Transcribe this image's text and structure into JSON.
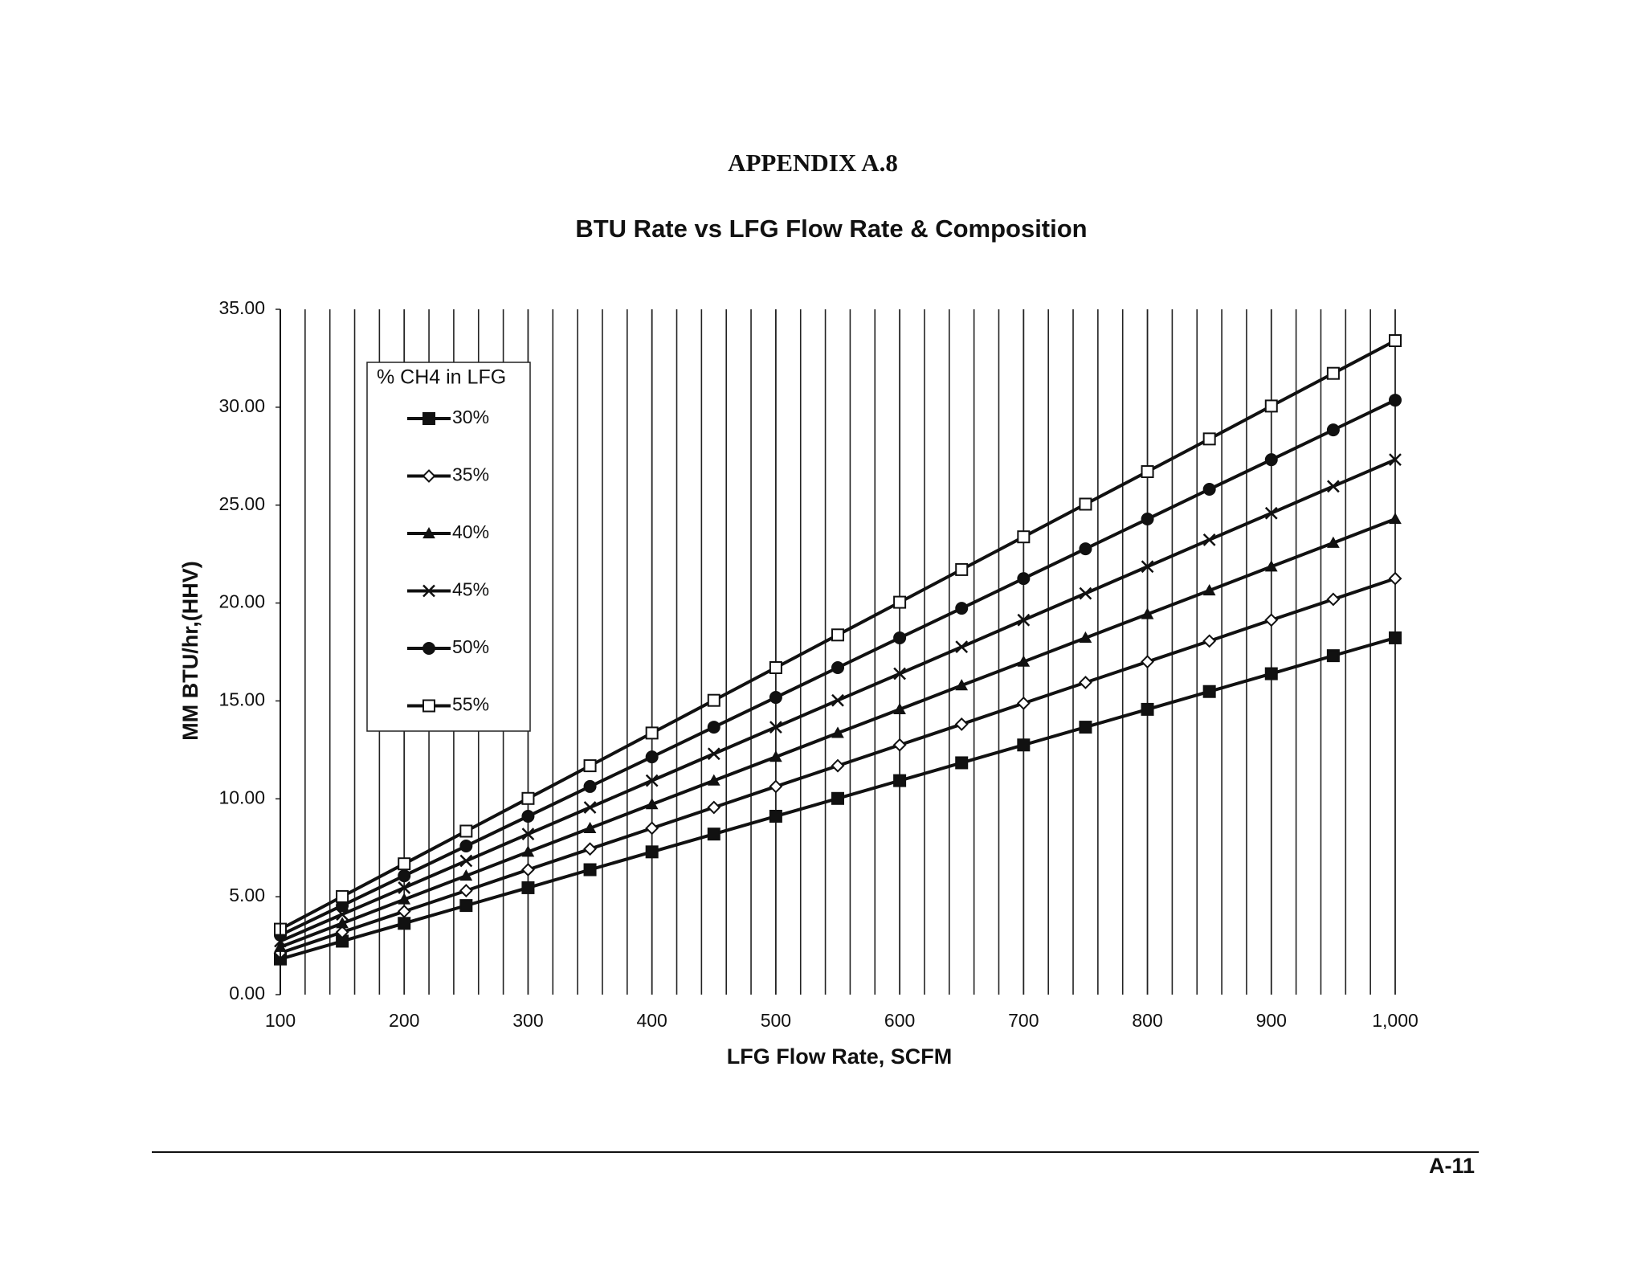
{
  "header": {
    "title": "APPENDIX A.8"
  },
  "footer": {
    "page": "A-11"
  },
  "chart_data": {
    "type": "line",
    "title": "BTU Rate vs LFG Flow Rate & Composition",
    "x_label": "LFG Flow Rate, SCFM",
    "y_label": "MM BTU/hr,(HHV)",
    "legend_title": "% CH4 in LFG",
    "legend": "upper left",
    "grid": true,
    "x": [
      100,
      150,
      200,
      250,
      300,
      350,
      400,
      450,
      500,
      550,
      600,
      650,
      700,
      750,
      800,
      850,
      900,
      950,
      1000
    ],
    "xlim": [
      100,
      1000
    ],
    "xticks": [
      100,
      200,
      300,
      400,
      500,
      600,
      700,
      800,
      900,
      {
        "value": 1000,
        "label": "1,000"
      }
    ],
    "ylim": [
      0,
      35
    ],
    "yticks": [
      {
        "value": 0,
        "label": "0.00"
      },
      {
        "value": 5,
        "label": "5.00"
      },
      {
        "value": 10,
        "label": "10.00"
      },
      {
        "value": 15,
        "label": "15.00"
      },
      {
        "value": 20,
        "label": "20.00"
      },
      {
        "value": 25,
        "label": "25.00"
      },
      {
        "value": 30,
        "label": "30.00"
      },
      {
        "value": 35,
        "label": "35.00"
      }
    ],
    "series": [
      {
        "name": "30%",
        "color": "#111111",
        "marker": "square-filled",
        "values": [
          1.82,
          2.73,
          3.64,
          4.55,
          5.46,
          6.38,
          7.29,
          8.2,
          9.11,
          10.02,
          10.93,
          11.84,
          12.75,
          13.66,
          14.57,
          15.48,
          16.39,
          17.31,
          18.22
        ]
      },
      {
        "name": "35%",
        "color": "#111111",
        "marker": "diamond-open",
        "values": [
          2.13,
          3.19,
          4.25,
          5.31,
          6.38,
          7.44,
          8.5,
          9.56,
          10.63,
          11.69,
          12.75,
          13.81,
          14.88,
          15.94,
          17.0,
          18.06,
          19.13,
          20.19,
          21.25
        ]
      },
      {
        "name": "40%",
        "color": "#111111",
        "marker": "triangle-filled",
        "values": [
          2.43,
          3.64,
          4.86,
          6.07,
          7.29,
          8.5,
          9.72,
          10.93,
          12.14,
          13.36,
          14.57,
          15.79,
          17.0,
          18.22,
          19.43,
          20.64,
          21.86,
          23.07,
          24.29
        ]
      },
      {
        "name": "45%",
        "color": "#111111",
        "marker": "x",
        "values": [
          2.73,
          4.1,
          5.46,
          6.83,
          8.2,
          9.56,
          10.93,
          12.3,
          13.66,
          15.03,
          16.39,
          17.76,
          19.13,
          20.49,
          21.86,
          23.23,
          24.59,
          25.96,
          27.32
        ]
      },
      {
        "name": "50%",
        "color": "#111111",
        "marker": "circle-filled",
        "values": [
          3.04,
          4.55,
          6.07,
          7.59,
          9.11,
          10.63,
          12.14,
          13.66,
          15.18,
          16.7,
          18.22,
          19.73,
          21.25,
          22.77,
          24.29,
          25.81,
          27.32,
          28.84,
          30.36
        ]
      },
      {
        "name": "55%",
        "color": "#111111",
        "marker": "square-open",
        "values": [
          3.34,
          5.01,
          6.68,
          8.35,
          10.02,
          11.69,
          13.36,
          15.03,
          16.7,
          18.37,
          20.04,
          21.71,
          23.38,
          25.05,
          26.71,
          28.38,
          30.06,
          31.73,
          33.4
        ]
      }
    ]
  }
}
